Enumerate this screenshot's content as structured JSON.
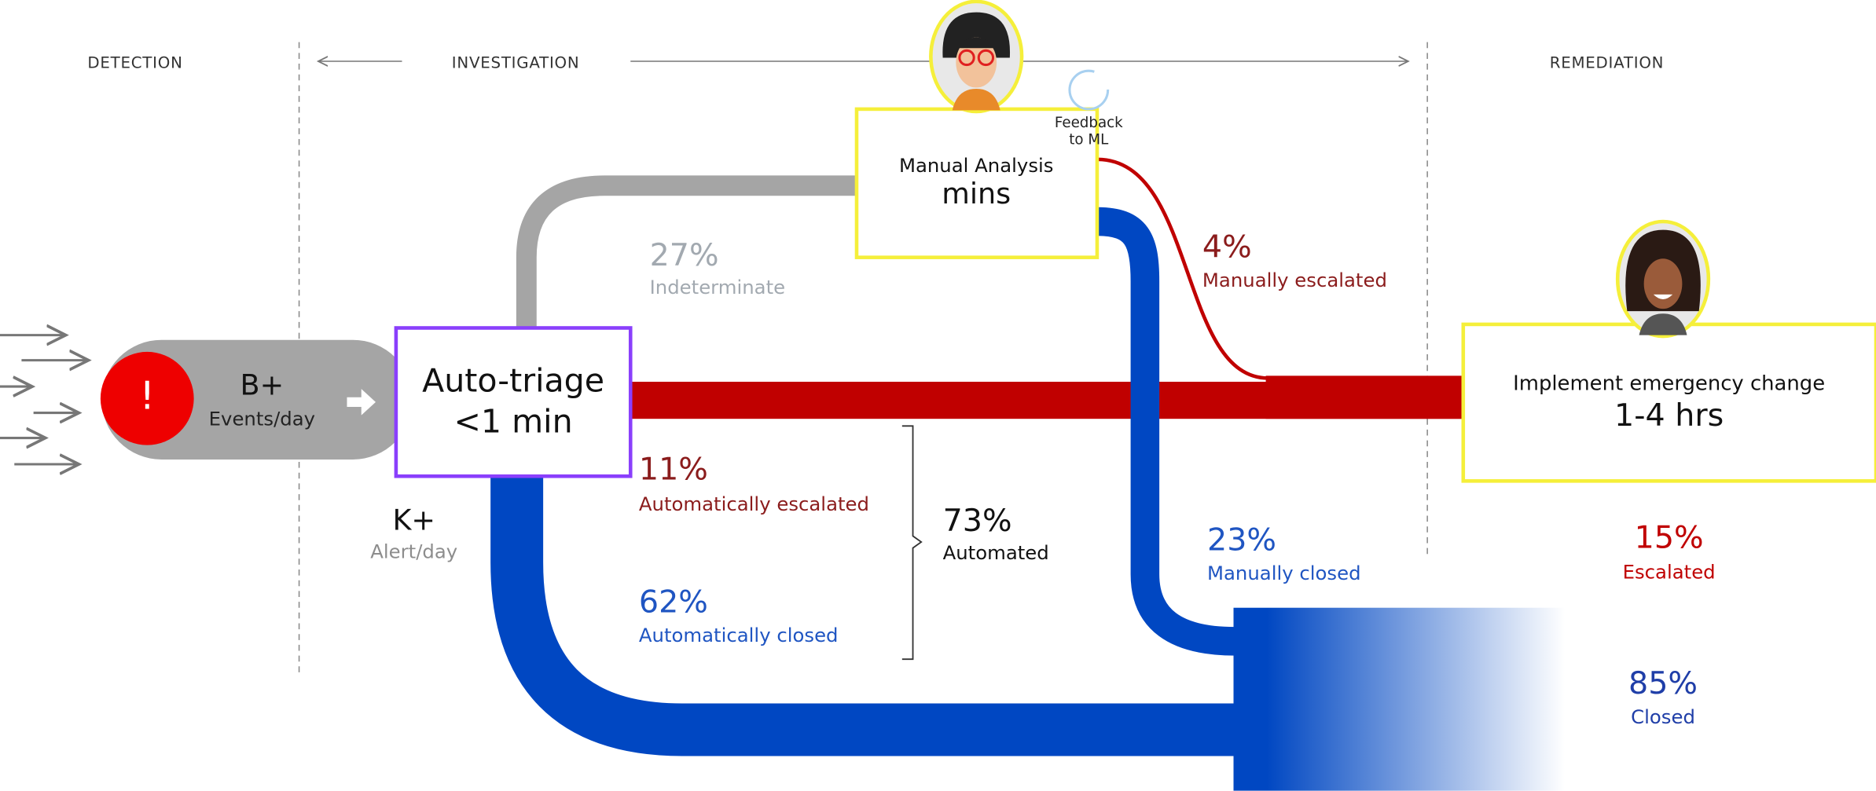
{
  "phases": {
    "detection": "DETECTION",
    "investigation": "INVESTIGATION",
    "remediation": "REMEDIATION"
  },
  "source": {
    "icon": "!",
    "volume": "B+",
    "unit": "Events/day"
  },
  "auto_triage": {
    "title": "Auto-triage",
    "time": "<1 min",
    "alerts": "K+",
    "alerts_unit": "Alert/day"
  },
  "manual_analysis": {
    "title": "Manual Analysis",
    "time": "mins",
    "feedback": [
      "Feedback",
      "to ML"
    ]
  },
  "remediation_box": {
    "title": "Implement emergency change",
    "time": "1-4 hrs"
  },
  "flows": {
    "indeterminate": {
      "percent": "27%",
      "label": "Indeterminate"
    },
    "manually_escalated": {
      "percent": "4%",
      "label": "Manually escalated"
    },
    "automatically_escalated": {
      "percent": "11%",
      "label": "Automatically escalated"
    },
    "automatically_closed": {
      "percent": "62%",
      "label": "Automatically closed"
    },
    "automated": {
      "percent": "73%",
      "label": "Automated"
    },
    "manually_closed": {
      "percent": "23%",
      "label": "Manually closed"
    },
    "escalated": {
      "percent": "15%",
      "label": "Escalated"
    },
    "closed": {
      "percent": "85%",
      "label": "Closed"
    }
  }
}
